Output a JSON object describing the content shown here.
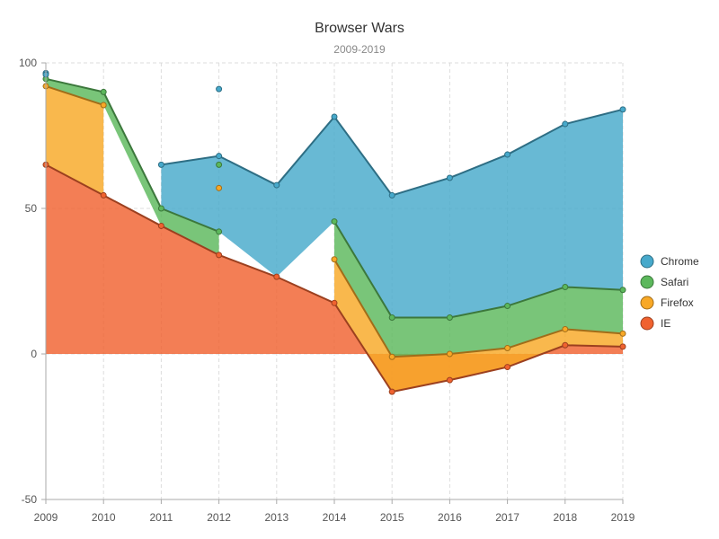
{
  "chart_data": {
    "type": "area",
    "title": "Browser Wars",
    "subtitle": "2009-2019",
    "xlabel": "",
    "ylabel": "",
    "x": [
      2009,
      2010,
      2011,
      2012,
      2013,
      2014,
      2015,
      2016,
      2017,
      2018,
      2019
    ],
    "xlim": [
      2009,
      2019
    ],
    "ylim": [
      -50,
      100
    ],
    "yticks": [
      -50,
      0,
      50,
      100
    ],
    "grid": true,
    "legend_position": "right",
    "series": [
      {
        "name": "IE",
        "color": "#f0622f",
        "values": [
          65,
          54.5,
          44,
          34,
          26.5,
          17.5,
          -13,
          -9,
          -4.5,
          3,
          2.5
        ]
      },
      {
        "name": "Firefox",
        "color": "#f8a826",
        "values": [
          27,
          31,
          null,
          null,
          null,
          15,
          12,
          9,
          6.5,
          5.5,
          4.5
        ]
      },
      {
        "name": "Safari",
        "color": "#5cb85c",
        "values": [
          2.5,
          4.5,
          6,
          8,
          null,
          13,
          13.5,
          12.5,
          14.5,
          14.5,
          15
        ]
      },
      {
        "name": "Chrome",
        "color": "#47a9cb",
        "values": [
          2,
          null,
          15,
          26,
          31.5,
          36,
          42,
          48,
          52,
          56,
          62
        ]
      }
    ],
    "isolated_points": [
      {
        "series": "Chrome",
        "x": 2009,
        "y": 96
      },
      {
        "series": "Chrome",
        "x": 2012,
        "y": 91
      },
      {
        "series": "Safari",
        "x": 2012,
        "y": 65
      },
      {
        "series": "Firefox",
        "x": 2012,
        "y": 57
      }
    ]
  }
}
